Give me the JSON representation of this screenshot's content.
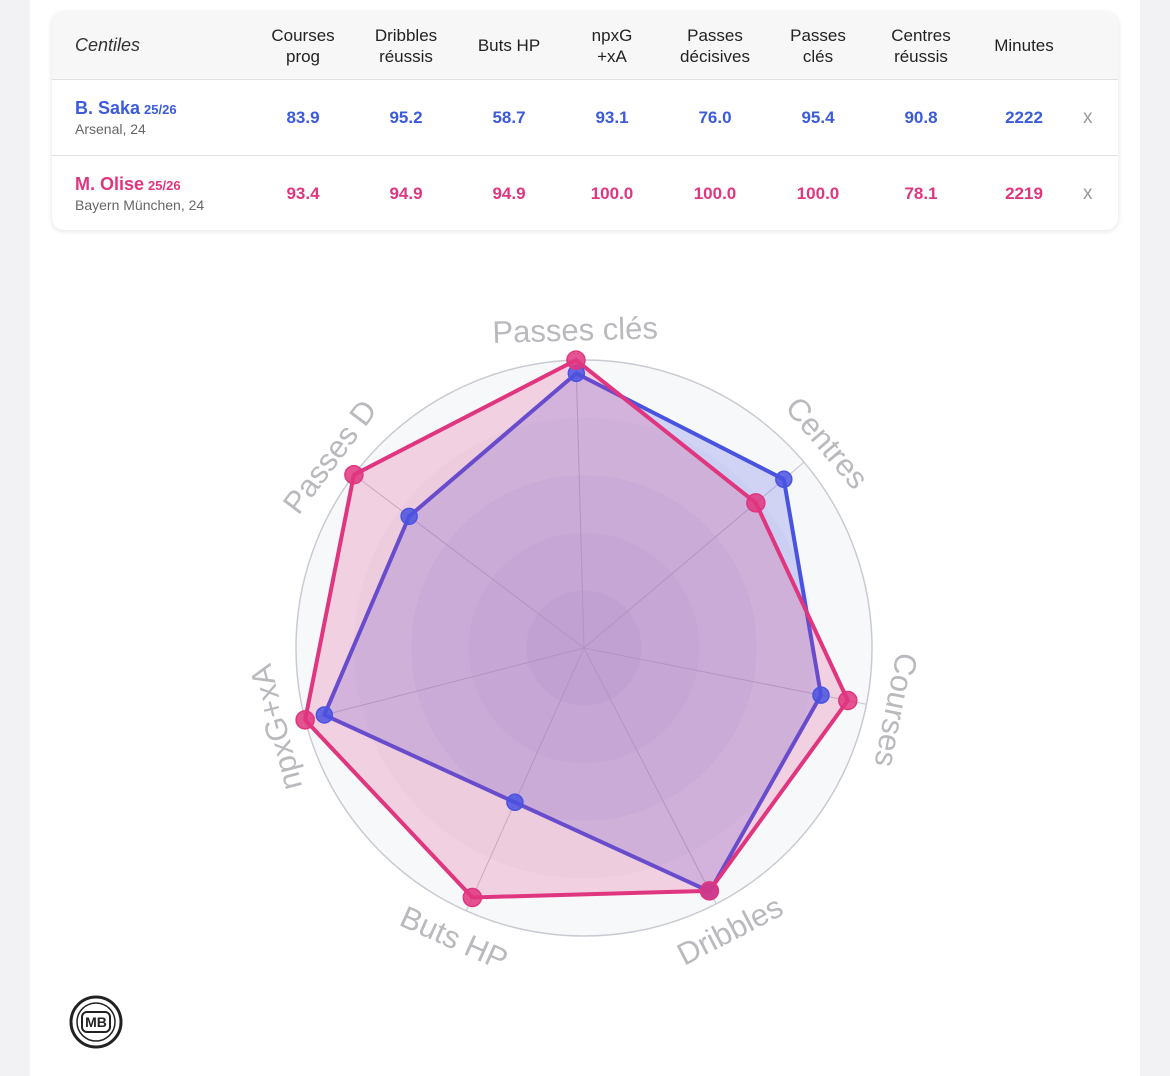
{
  "table": {
    "header_label": "Centiles",
    "columns": [
      [
        "Courses",
        "prog"
      ],
      [
        "Dribbles",
        "réussis"
      ],
      [
        "Buts HP"
      ],
      [
        "npxG",
        "+xA"
      ],
      [
        "Passes",
        "décisives"
      ],
      [
        "Passes",
        "clés"
      ],
      [
        "Centres",
        "réussis"
      ],
      [
        "Minutes"
      ]
    ],
    "players": [
      {
        "name": "B. Saka",
        "season": "25/26",
        "team": "Arsenal, 24",
        "color": "#3b5bdb",
        "values": [
          "83.9",
          "95.2",
          "58.7",
          "93.1",
          "76.0",
          "95.4",
          "90.8",
          "2222"
        ],
        "remove": "x"
      },
      {
        "name": "M. Olise",
        "season": "25/26",
        "team": "Bayern München, 24",
        "color": "#e0357f",
        "values": [
          "93.4",
          "94.9",
          "94.9",
          "100.0",
          "100.0",
          "100.0",
          "78.1",
          "2219"
        ],
        "remove": "x"
      }
    ]
  },
  "chart_data": {
    "type": "radar",
    "axes": [
      "Passes clés",
      "Centres",
      "Courses",
      "Dribbles",
      "Buts HP",
      "npxG+xA",
      "Passes D"
    ],
    "range": [
      0,
      100
    ],
    "series": [
      {
        "name": "B. Saka",
        "color": "#4a52e0",
        "values": [
          95.4,
          90.8,
          83.9,
          95.2,
          58.7,
          93.1,
          76.0
        ]
      },
      {
        "name": "M. Olise",
        "color": "#e0357f",
        "values": [
          100.0,
          78.1,
          93.4,
          94.9,
          94.9,
          100.0,
          100.0
        ]
      }
    ]
  },
  "logo": {
    "text": "MB"
  }
}
